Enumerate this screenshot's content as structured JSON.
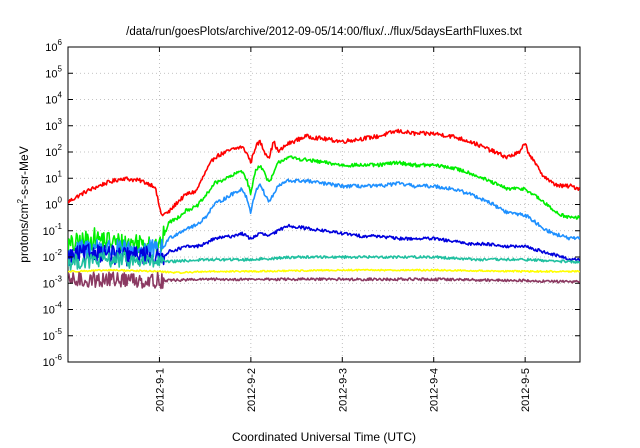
{
  "chart_data": {
    "type": "line",
    "title": "/data/run/goesPlots/archive/2012-09-05/14:00/flux/../flux/5daysEarthFluxes.txt",
    "xlabel": "Coordinated Universal Time (UTC)",
    "ylabel": "protons/cm2-s-sr-MeV",
    "ylabel_parts": {
      "pre": "protons/cm",
      "sup": "2",
      "post": "-s-sr-MeV"
    },
    "x_unit": "days since 2012-08-31 00:00 UTC",
    "xlim": [
      0,
      5.6
    ],
    "ylim_log10": [
      -6,
      6
    ],
    "y_scale": "log",
    "grid": true,
    "x_ticks": [
      {
        "value": 1,
        "label": "2012-9-1"
      },
      {
        "value": 2,
        "label": "2012-9-2"
      },
      {
        "value": 3,
        "label": "2012-9-3"
      },
      {
        "value": 4,
        "label": "2012-9-4"
      },
      {
        "value": 5,
        "label": "2012-9-5"
      }
    ],
    "y_ticks": [
      {
        "exp": 6,
        "base": "10",
        "sup": "6"
      },
      {
        "exp": 5,
        "base": "10",
        "sup": "5"
      },
      {
        "exp": 4,
        "base": "10",
        "sup": "4"
      },
      {
        "exp": 3,
        "base": "10",
        "sup": "3"
      },
      {
        "exp": 2,
        "base": "10",
        "sup": "2"
      },
      {
        "exp": 1,
        "base": "10",
        "sup": "1"
      },
      {
        "exp": 0,
        "base": "10",
        "sup": "0"
      },
      {
        "exp": -1,
        "base": "10",
        "sup": "-1"
      },
      {
        "exp": -2,
        "base": "10",
        "sup": "-2"
      },
      {
        "exp": -3,
        "base": "10",
        "sup": "-3"
      },
      {
        "exp": -4,
        "base": "10",
        "sup": "-4"
      },
      {
        "exp": -5,
        "base": "10",
        "sup": "-5"
      },
      {
        "exp": -6,
        "base": "10",
        "sup": "-6"
      }
    ],
    "series": [
      {
        "color": "#ff0000",
        "jitter": 0.08,
        "noisy_until": 0,
        "points": [
          [
            0,
            0.1
          ],
          [
            0.2,
            0.5
          ],
          [
            0.4,
            0.8
          ],
          [
            0.6,
            1.0
          ],
          [
            0.8,
            0.9
          ],
          [
            0.95,
            0.7
          ],
          [
            1.02,
            -0.4
          ],
          [
            1.1,
            -0.3
          ],
          [
            1.2,
            0.1
          ],
          [
            1.3,
            0.4
          ],
          [
            1.4,
            0.5
          ],
          [
            1.5,
            1.2
          ],
          [
            1.6,
            1.8
          ],
          [
            1.8,
            2.1
          ],
          [
            1.9,
            2.2
          ],
          [
            1.95,
            2.0
          ],
          [
            2.0,
            1.6
          ],
          [
            2.05,
            2.2
          ],
          [
            2.1,
            2.4
          ],
          [
            2.15,
            2.0
          ],
          [
            2.2,
            1.8
          ],
          [
            2.25,
            2.4
          ],
          [
            2.3,
            2.0
          ],
          [
            2.4,
            2.3
          ],
          [
            2.6,
            2.6
          ],
          [
            2.8,
            2.5
          ],
          [
            3.0,
            2.4
          ],
          [
            3.2,
            2.5
          ],
          [
            3.4,
            2.6
          ],
          [
            3.6,
            2.8
          ],
          [
            3.8,
            2.7
          ],
          [
            4.0,
            2.7
          ],
          [
            4.2,
            2.6
          ],
          [
            4.4,
            2.4
          ],
          [
            4.6,
            2.1
          ],
          [
            4.8,
            1.8
          ],
          [
            4.95,
            2.0
          ],
          [
            5.0,
            2.4
          ],
          [
            5.02,
            2.1
          ],
          [
            5.1,
            1.6
          ],
          [
            5.2,
            1.1
          ],
          [
            5.3,
            0.8
          ],
          [
            5.4,
            0.7
          ],
          [
            5.5,
            0.7
          ],
          [
            5.6,
            0.6
          ]
        ]
      },
      {
        "color": "#00ee00",
        "jitter": 0.07,
        "noisy_until": 1.05,
        "points": [
          [
            0,
            -1.6
          ],
          [
            0.3,
            -1.3
          ],
          [
            0.6,
            -1.5
          ],
          [
            0.9,
            -1.4
          ],
          [
            1.0,
            -1.7
          ],
          [
            1.1,
            -0.7
          ],
          [
            1.2,
            -0.5
          ],
          [
            1.3,
            -0.2
          ],
          [
            1.4,
            -0.1
          ],
          [
            1.5,
            0.3
          ],
          [
            1.6,
            0.8
          ],
          [
            1.8,
            1.1
          ],
          [
            1.9,
            1.3
          ],
          [
            1.95,
            1.0
          ],
          [
            2.0,
            0.4
          ],
          [
            2.05,
            1.3
          ],
          [
            2.1,
            1.5
          ],
          [
            2.15,
            1.2
          ],
          [
            2.2,
            0.8
          ],
          [
            2.3,
            1.6
          ],
          [
            2.4,
            1.8
          ],
          [
            2.6,
            1.7
          ],
          [
            2.8,
            1.6
          ],
          [
            3.0,
            1.5
          ],
          [
            3.2,
            1.5
          ],
          [
            3.4,
            1.5
          ],
          [
            3.6,
            1.6
          ],
          [
            3.8,
            1.5
          ],
          [
            4.0,
            1.5
          ],
          [
            4.2,
            1.4
          ],
          [
            4.4,
            1.2
          ],
          [
            4.6,
            0.9
          ],
          [
            4.8,
            0.6
          ],
          [
            5.0,
            0.6
          ],
          [
            5.2,
            0.1
          ],
          [
            5.3,
            -0.2
          ],
          [
            5.4,
            -0.4
          ],
          [
            5.5,
            -0.5
          ],
          [
            5.6,
            -0.5
          ]
        ]
      },
      {
        "color": "#1e90ff",
        "jitter": 0.07,
        "noisy_until": 1.05,
        "points": [
          [
            0,
            -1.9
          ],
          [
            0.3,
            -1.6
          ],
          [
            0.6,
            -1.8
          ],
          [
            0.9,
            -1.7
          ],
          [
            1.0,
            -1.9
          ],
          [
            1.1,
            -1.3
          ],
          [
            1.2,
            -1.1
          ],
          [
            1.3,
            -0.9
          ],
          [
            1.4,
            -0.8
          ],
          [
            1.5,
            -0.5
          ],
          [
            1.6,
            0.0
          ],
          [
            1.8,
            0.4
          ],
          [
            1.9,
            0.6
          ],
          [
            1.95,
            0.3
          ],
          [
            2.0,
            -0.3
          ],
          [
            2.05,
            0.5
          ],
          [
            2.1,
            0.8
          ],
          [
            2.15,
            0.4
          ],
          [
            2.2,
            0.1
          ],
          [
            2.3,
            0.7
          ],
          [
            2.4,
            0.9
          ],
          [
            2.6,
            0.9
          ],
          [
            2.8,
            0.8
          ],
          [
            3.0,
            0.7
          ],
          [
            3.2,
            0.7
          ],
          [
            3.4,
            0.7
          ],
          [
            3.6,
            0.8
          ],
          [
            3.8,
            0.7
          ],
          [
            4.0,
            0.7
          ],
          [
            4.2,
            0.6
          ],
          [
            4.4,
            0.4
          ],
          [
            4.6,
            0.1
          ],
          [
            4.8,
            -0.3
          ],
          [
            5.0,
            -0.4
          ],
          [
            5.2,
            -0.9
          ],
          [
            5.3,
            -1.1
          ],
          [
            5.4,
            -1.2
          ],
          [
            5.5,
            -1.3
          ],
          [
            5.6,
            -1.3
          ]
        ]
      },
      {
        "color": "#0000dd",
        "jitter": 0.06,
        "noisy_until": 1.05,
        "points": [
          [
            0,
            -2.0
          ],
          [
            0.3,
            -1.8
          ],
          [
            0.6,
            -2.0
          ],
          [
            0.9,
            -1.9
          ],
          [
            1.0,
            -2.1
          ],
          [
            1.1,
            -1.8
          ],
          [
            1.2,
            -1.7
          ],
          [
            1.3,
            -1.6
          ],
          [
            1.4,
            -1.6
          ],
          [
            1.5,
            -1.5
          ],
          [
            1.6,
            -1.3
          ],
          [
            1.8,
            -1.2
          ],
          [
            1.9,
            -1.1
          ],
          [
            2.0,
            -1.3
          ],
          [
            2.1,
            -1.1
          ],
          [
            2.2,
            -1.2
          ],
          [
            2.4,
            -0.8
          ],
          [
            2.6,
            -0.9
          ],
          [
            2.8,
            -1.0
          ],
          [
            3.0,
            -1.1
          ],
          [
            3.2,
            -1.2
          ],
          [
            3.4,
            -1.2
          ],
          [
            3.6,
            -1.3
          ],
          [
            3.8,
            -1.3
          ],
          [
            4.0,
            -1.3
          ],
          [
            4.2,
            -1.4
          ],
          [
            4.4,
            -1.5
          ],
          [
            4.6,
            -1.5
          ],
          [
            4.8,
            -1.6
          ],
          [
            5.0,
            -1.6
          ],
          [
            5.2,
            -1.8
          ],
          [
            5.4,
            -2.0
          ],
          [
            5.5,
            -2.1
          ],
          [
            5.6,
            -2.1
          ]
        ]
      },
      {
        "color": "#20c0a0",
        "jitter": 0.05,
        "noisy_until": 1.05,
        "points": [
          [
            0,
            -2.2
          ],
          [
            0.5,
            -2.1
          ],
          [
            1.0,
            -2.2
          ],
          [
            1.5,
            -2.1
          ],
          [
            2.0,
            -2.1
          ],
          [
            2.5,
            -2.0
          ],
          [
            3.0,
            -2.0
          ],
          [
            3.5,
            -2.0
          ],
          [
            4.0,
            -2.0
          ],
          [
            4.5,
            -2.1
          ],
          [
            5.0,
            -2.1
          ],
          [
            5.6,
            -2.2
          ]
        ]
      },
      {
        "color": "#ffff00",
        "jitter": 0.03,
        "noisy_until": 0,
        "points": [
          [
            0,
            -2.55
          ],
          [
            0.5,
            -2.5
          ],
          [
            1.0,
            -2.55
          ],
          [
            1.2,
            -2.6
          ],
          [
            1.5,
            -2.55
          ],
          [
            2.0,
            -2.55
          ],
          [
            3.0,
            -2.5
          ],
          [
            4.0,
            -2.5
          ],
          [
            5.0,
            -2.55
          ],
          [
            5.6,
            -2.55
          ]
        ]
      },
      {
        "color": "#8b3a62",
        "jitter": 0.05,
        "noisy_until": 1.05,
        "points": [
          [
            0,
            -2.9
          ],
          [
            0.5,
            -2.85
          ],
          [
            1.0,
            -2.9
          ],
          [
            1.5,
            -2.85
          ],
          [
            2.0,
            -2.85
          ],
          [
            3.0,
            -2.85
          ],
          [
            4.0,
            -2.85
          ],
          [
            5.0,
            -2.9
          ],
          [
            5.6,
            -2.95
          ]
        ]
      }
    ]
  }
}
